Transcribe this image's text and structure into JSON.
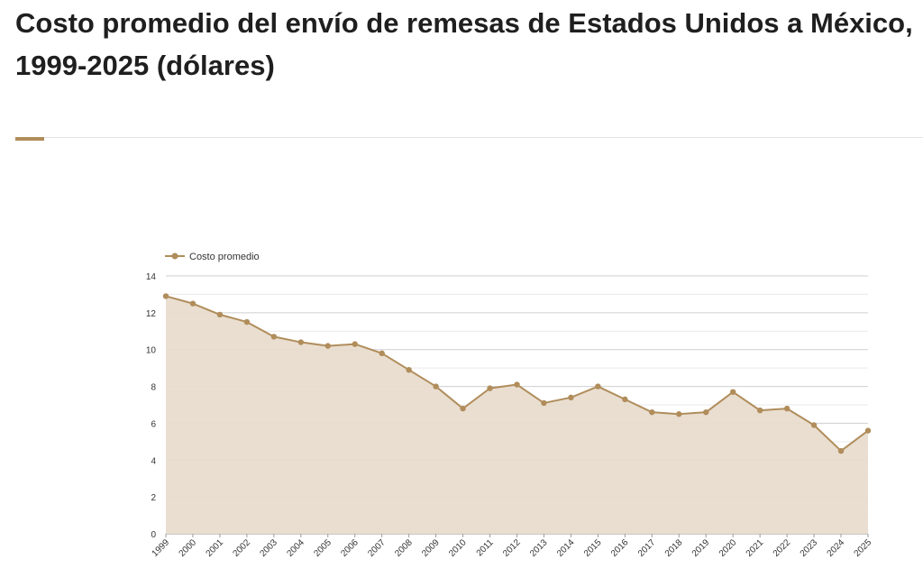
{
  "header": {
    "title": "Costo promedio del envío de remesas de Estados Unidos a México, 1999-2025 (dólares)"
  },
  "colors": {
    "accent": "#b08d5b",
    "series_line": "#b08d5b",
    "series_fill": "#e8dccd",
    "grid": "#cfcfcf",
    "grid_minor": "#e9e9e9"
  },
  "chart_data": {
    "type": "area",
    "title": "",
    "xlabel": "",
    "ylabel": "",
    "ylim": [
      0,
      14
    ],
    "yticks": [
      0,
      2,
      4,
      6,
      8,
      10,
      12,
      14
    ],
    "grid": true,
    "legend": "top-left",
    "categories": [
      "1999",
      "2000",
      "2001",
      "2002",
      "2003",
      "2004",
      "2005",
      "2006",
      "2007",
      "2008",
      "2009",
      "2010",
      "2011",
      "2012",
      "2013",
      "2014",
      "2015",
      "2016",
      "2017",
      "2018",
      "2019",
      "2020",
      "2021",
      "2022",
      "2023",
      "2024",
      "2025"
    ],
    "series": [
      {
        "name": "Costo promedio",
        "values": [
          12.9,
          12.5,
          11.9,
          11.5,
          10.7,
          10.4,
          10.2,
          10.3,
          9.8,
          8.9,
          8.0,
          6.8,
          7.9,
          8.1,
          7.1,
          7.4,
          8.0,
          7.3,
          6.6,
          6.5,
          6.6,
          7.7,
          6.7,
          6.8,
          5.9,
          4.5,
          5.6
        ]
      }
    ]
  }
}
